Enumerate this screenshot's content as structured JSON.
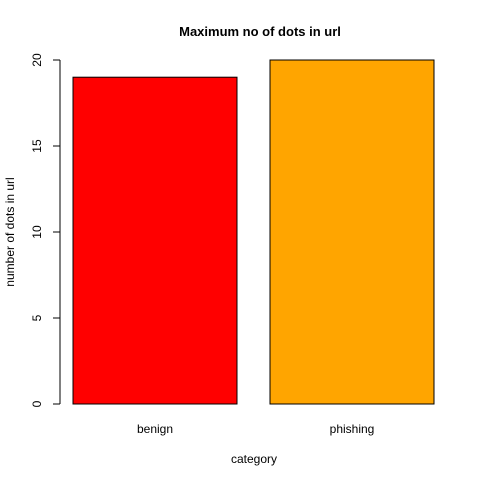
{
  "chart_data": {
    "type": "bar",
    "title": "Maximum no of dots in url",
    "xlabel": "category",
    "ylabel": "number of dots in url",
    "categories": [
      "benign",
      "phishing"
    ],
    "values": [
      19,
      20
    ],
    "colors": [
      "#ff0000",
      "#ffa500"
    ],
    "ylim": [
      0,
      20
    ],
    "yticks": [
      0,
      5,
      10,
      15,
      20
    ],
    "grid": false,
    "legend": "none"
  }
}
